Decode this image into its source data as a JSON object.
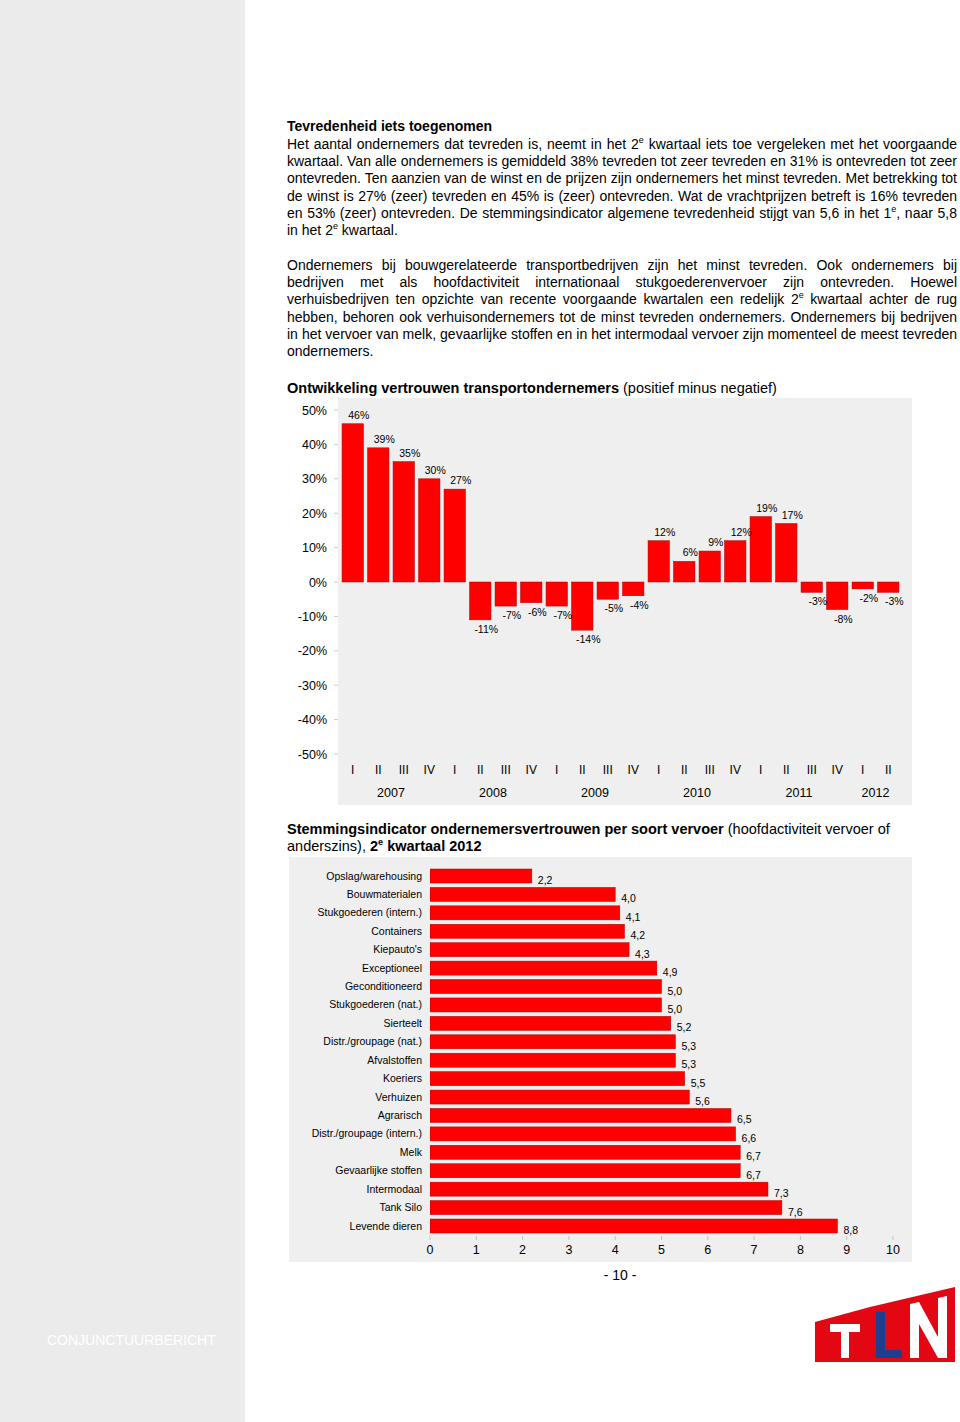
{
  "page": {
    "heading": "Tevredenheid iets toegenomen",
    "paragraphs": [
      [
        {
          "text": "Het aantal ondernemers dat tevreden is, neemt in het 2",
          "style": "normal"
        },
        {
          "text": "e",
          "style": "sup"
        },
        {
          "text": " kwartaal iets toe vergeleken met het voorgaande kwartaal. Van alle ondernemers is gemiddeld 38% tevreden tot zeer tevreden en 31% is ontevreden tot zeer ontevreden. Ten aanzien van de winst en de prijzen zijn ondernemers het minst tevreden. Met betrekking tot de winst is 27% (zeer) tevreden en 45% is (zeer) ontevreden. Wat de vrachtprijzen betreft is 16% tevreden en 53% (zeer) ontevreden. De stemmingsindicator algemene tevredenheid stijgt van 5,6 in het 1",
          "style": "normal"
        },
        {
          "text": "e",
          "style": "sup"
        },
        {
          "text": ", naar 5,8 in het 2",
          "style": "normal"
        },
        {
          "text": "e",
          "style": "sup"
        },
        {
          "text": " kwartaal.",
          "style": "normal"
        }
      ],
      [
        {
          "text": "Ondernemers bij bouwgerelateerde transportbedrijven zijn het minst tevreden. Ook ondernemers bij bedrijven met als hoofdactiviteit internationaal stukgoederenvervoer zijn ontevreden. Hoewel verhuisbedrijven ten opzichte van recente voorgaande kwartalen een redelijk 2",
          "style": "normal"
        },
        {
          "text": "e",
          "style": "sup"
        },
        {
          "text": " kwartaal achter de rug hebben, behoren ook verhuisondernemers tot de minst tevreden ondernemers. Ondernemers bij bedrijven in het vervoer van melk, gevaarlijke stoffen en in het intermodaal vervoer zijn momenteel de meest tevreden ondernemers.",
          "style": "normal"
        }
      ]
    ],
    "page_number": "- 10 -",
    "footer": "CONJUNCTUURBERICHT"
  },
  "chart_data": [
    {
      "type": "bar",
      "title": [
        {
          "text": "Ontwikkeling vertrouwen transportondernemers",
          "style": "bold"
        },
        {
          "text": " (positief minus negatief)",
          "style": "normal"
        }
      ],
      "categories": [
        "I",
        "II",
        "III",
        "IV",
        "I",
        "II",
        "III",
        "IV",
        "I",
        "II",
        "III",
        "IV",
        "I",
        "II",
        "III",
        "IV",
        "I",
        "II",
        "III",
        "IV",
        "I",
        "II"
      ],
      "group_labels": [
        "2007",
        "2008",
        "2009",
        "2010",
        "2011",
        "2012"
      ],
      "values": [
        46,
        39,
        35,
        30,
        27,
        -11,
        -7,
        -6,
        -7,
        -14,
        -5,
        -4,
        12,
        6,
        9,
        12,
        19,
        17,
        -3,
        -8,
        -2,
        -3
      ],
      "value_labels": [
        "46%",
        "39%",
        "35%",
        "30%",
        "27%",
        "-11%",
        "-7%",
        "-6%",
        "-7%",
        "-14%",
        "-5%",
        "-4%",
        "12%",
        "6%",
        "9%",
        "12%",
        "19%",
        "17%",
        "-3%",
        "-8%",
        "-2%",
        "-3%"
      ],
      "data_labels": true,
      "color": "#ff0000",
      "grid": false,
      "ylim": [
        -50,
        50
      ],
      "yticks": [
        {
          "value": -50,
          "label": "-50%"
        },
        {
          "value": -40,
          "label": "-40%"
        },
        {
          "value": -30,
          "label": "-30%"
        },
        {
          "value": -20,
          "label": "-20%"
        },
        {
          "value": -10,
          "label": "-10%"
        },
        {
          "value": 0,
          "label": "0%"
        },
        {
          "value": 10,
          "label": "10%"
        },
        {
          "value": 20,
          "label": "20%"
        },
        {
          "value": 30,
          "label": "30%"
        },
        {
          "value": 40,
          "label": "40%"
        },
        {
          "value": 50,
          "label": "50%"
        }
      ]
    },
    {
      "type": "bar",
      "orientation": "horizontal",
      "title": [
        {
          "text": "Stemmingsindicator ondernemersvertrouwen per soort vervoer",
          "style": "bold"
        },
        {
          "text": " (hoofdactiviteit vervoer of anderszins), ",
          "style": "normal"
        },
        {
          "text": "2",
          "style": "bold"
        },
        {
          "text": "e",
          "style": "bold-sup"
        },
        {
          "text": " kwartaal 2012",
          "style": "bold"
        }
      ],
      "categories": [
        "Opslag/warehousing",
        "Bouwmaterialen",
        "Stukgoederen (intern.)",
        "Containers",
        "Kiepauto's",
        "Exceptioneel",
        "Geconditioneerd",
        "Stukgoederen (nat.)",
        "Sierteelt",
        "Distr./groupage (nat.)",
        "Afvalstoffen",
        "Koeriers",
        "Verhuizen",
        "Agrarisch",
        "Distr./groupage (intern.)",
        "Melk",
        "Gevaarlijke stoffen",
        "Intermodaal",
        "Tank Silo",
        "Levende dieren"
      ],
      "values": [
        2.2,
        4.0,
        4.1,
        4.2,
        4.3,
        4.9,
        5.0,
        5.0,
        5.2,
        5.3,
        5.3,
        5.5,
        5.6,
        6.5,
        6.6,
        6.7,
        6.7,
        7.3,
        7.6,
        8.8
      ],
      "value_labels": [
        "2,2",
        "4,0",
        "4,1",
        "4,2",
        "4,3",
        "4,9",
        "5,0",
        "5,0",
        "5,2",
        "5,3",
        "5,3",
        "5,5",
        "5,6",
        "6,5",
        "6,6",
        "6,7",
        "6,7",
        "7,3",
        "7,6",
        "8,8"
      ],
      "data_labels": true,
      "color": "#ff0000",
      "grid": false,
      "xlim": [
        0,
        10
      ],
      "xticks": [
        0,
        1,
        2,
        3,
        4,
        5,
        6,
        7,
        8,
        9,
        10
      ]
    }
  ]
}
